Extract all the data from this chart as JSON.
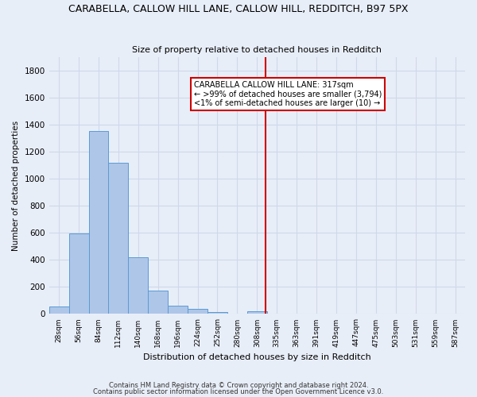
{
  "title": "CARABELLA, CALLOW HILL LANE, CALLOW HILL, REDDITCH, B97 5PX",
  "subtitle": "Size of property relative to detached houses in Redditch",
  "xlabel": "Distribution of detached houses by size in Redditch",
  "ylabel": "Number of detached properties",
  "footer1": "Contains HM Land Registry data © Crown copyright and database right 2024.",
  "footer2": "Contains public sector information licensed under the Open Government Licence v3.0.",
  "bin_labels": [
    "28sqm",
    "56sqm",
    "84sqm",
    "112sqm",
    "140sqm",
    "168sqm",
    "196sqm",
    "224sqm",
    "252sqm",
    "280sqm",
    "308sqm",
    "335sqm",
    "363sqm",
    "391sqm",
    "419sqm",
    "447sqm",
    "475sqm",
    "503sqm",
    "531sqm",
    "559sqm",
    "587sqm"
  ],
  "bar_values": [
    55,
    595,
    1350,
    1115,
    420,
    170,
    60,
    38,
    12,
    0,
    20,
    0,
    0,
    0,
    0,
    0,
    0,
    0,
    0,
    0,
    0
  ],
  "bar_color": "#aec6e8",
  "bar_edge_color": "#5a9bd5",
  "grid_color": "#d0d8e8",
  "background_color": "#e8eef8",
  "vline_x": 10.42,
  "vline_color": "#cc0000",
  "annotation_text": "CARABELLA CALLOW HILL LANE: 317sqm\n← >99% of detached houses are smaller (3,794)\n<1% of semi-detached houses are larger (10) →",
  "annotation_box_color": "#ffffff",
  "annotation_border_color": "#cc0000",
  "ylim": [
    0,
    1900
  ],
  "yticks": [
    0,
    200,
    400,
    600,
    800,
    1000,
    1200,
    1400,
    1600,
    1800
  ],
  "figsize": [
    6.0,
    5.0
  ],
  "dpi": 100
}
